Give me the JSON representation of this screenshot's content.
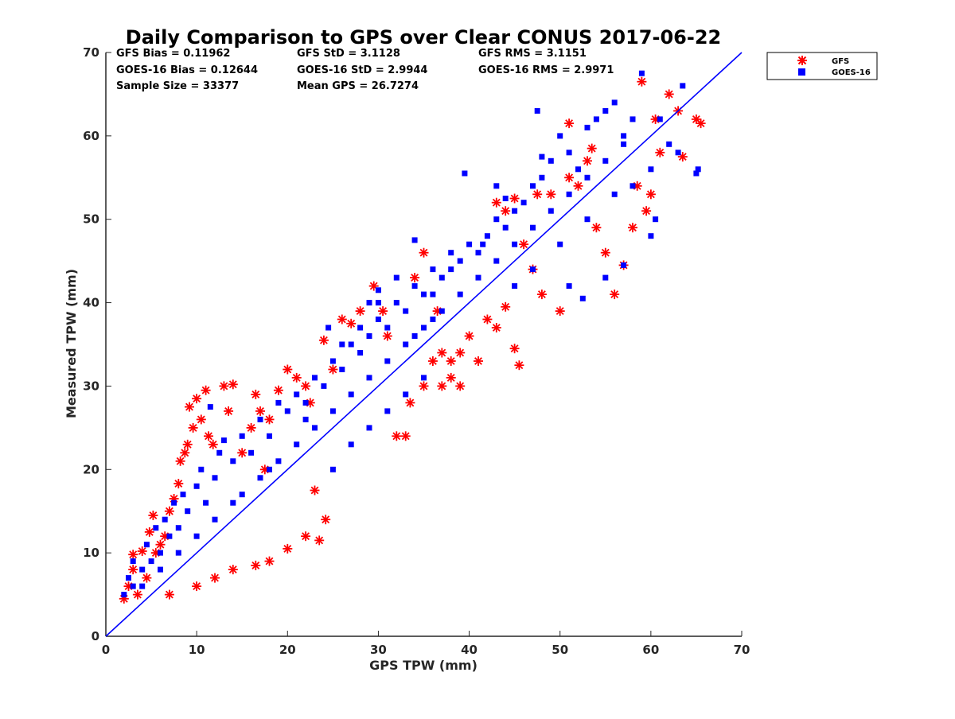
{
  "chart_data": {
    "type": "scatter",
    "title": "Daily Comparison to GPS over Clear CONUS 2017-06-22",
    "xlabel": "GPS TPW (mm)",
    "ylabel": "Measured TPW (mm)",
    "xlim": [
      0,
      70
    ],
    "ylim": [
      0,
      70
    ],
    "xticks": [
      "0",
      "10",
      "20",
      "30",
      "40",
      "50",
      "60",
      "70"
    ],
    "yticks": [
      "0",
      "10",
      "20",
      "30",
      "40",
      "50",
      "60",
      "70"
    ],
    "stats": [
      [
        "GFS Bias = 0.11962",
        "GFS StD = 3.1128",
        "GFS RMS = 3.1151"
      ],
      [
        "GOES-16 Bias = 0.12644",
        "GOES-16 StD = 2.9944",
        "GOES-16 RMS = 2.9971"
      ],
      [
        "Sample Size = 33377",
        "Mean GPS = 26.7274"
      ]
    ],
    "legend": [
      {
        "name": "GFS",
        "marker": "asterisk",
        "color": "#ff0000"
      },
      {
        "name": "GOES-16",
        "marker": "square",
        "color": "#0000ff"
      }
    ],
    "legend_position": "outside-top-right",
    "reference_line": {
      "from": [
        0,
        0
      ],
      "to": [
        70,
        70
      ],
      "color": "#0000ff"
    },
    "series": [
      {
        "name": "GFS",
        "color": "#ff0000",
        "points": [
          [
            2,
            4.5
          ],
          [
            2.5,
            6
          ],
          [
            3,
            8
          ],
          [
            3,
            9.8
          ],
          [
            3.5,
            5
          ],
          [
            4,
            10.2
          ],
          [
            4.5,
            7
          ],
          [
            4.8,
            12.5
          ],
          [
            5.2,
            14.5
          ],
          [
            5.5,
            10
          ],
          [
            6,
            11
          ],
          [
            6.5,
            12
          ],
          [
            7,
            15
          ],
          [
            7.5,
            16.5
          ],
          [
            8,
            18.3
          ],
          [
            8.2,
            21
          ],
          [
            8.7,
            22
          ],
          [
            9,
            23
          ],
          [
            9.2,
            27.5
          ],
          [
            9.6,
            25
          ],
          [
            10,
            28.5
          ],
          [
            10.5,
            26
          ],
          [
            11,
            29.5
          ],
          [
            11.3,
            24
          ],
          [
            11.8,
            23
          ],
          [
            13,
            30
          ],
          [
            14,
            30.2
          ],
          [
            13.5,
            27
          ],
          [
            15,
            22
          ],
          [
            16,
            25
          ],
          [
            16.5,
            29
          ],
          [
            17,
            27
          ],
          [
            17.5,
            20
          ],
          [
            18,
            26
          ],
          [
            19,
            29.5
          ],
          [
            20,
            32
          ],
          [
            21,
            31
          ],
          [
            22,
            30
          ],
          [
            22.5,
            28
          ],
          [
            23,
            17.5
          ],
          [
            24,
            35.5
          ],
          [
            25,
            32
          ],
          [
            26,
            38
          ],
          [
            27,
            37.5
          ],
          [
            28,
            39
          ],
          [
            29.5,
            42
          ],
          [
            30.5,
            39
          ],
          [
            31,
            36
          ],
          [
            23.5,
            11.5
          ],
          [
            24.2,
            14
          ],
          [
            22,
            12
          ],
          [
            20,
            10.5
          ],
          [
            18,
            9
          ],
          [
            16.5,
            8.5
          ],
          [
            14,
            8
          ],
          [
            12,
            7
          ],
          [
            10,
            6
          ],
          [
            7,
            5
          ],
          [
            32,
            24
          ],
          [
            33,
            24
          ],
          [
            33.5,
            28
          ],
          [
            34,
            43
          ],
          [
            35,
            46
          ],
          [
            36,
            33
          ],
          [
            37,
            30
          ],
          [
            38,
            31
          ],
          [
            39,
            34
          ],
          [
            40,
            36
          ],
          [
            41,
            33
          ],
          [
            42,
            38
          ],
          [
            43,
            52
          ],
          [
            44,
            51
          ],
          [
            45,
            34.5
          ],
          [
            45.5,
            32.5
          ],
          [
            46,
            47
          ],
          [
            47,
            44
          ],
          [
            48,
            41
          ],
          [
            49,
            53
          ],
          [
            50,
            39
          ],
          [
            51,
            55
          ],
          [
            52,
            54
          ],
          [
            53,
            57
          ],
          [
            54,
            49
          ],
          [
            55,
            46
          ],
          [
            56,
            41
          ],
          [
            57,
            44.5
          ],
          [
            58,
            49
          ],
          [
            58.5,
            54
          ],
          [
            59,
            66.5
          ],
          [
            59.5,
            51
          ],
          [
            60,
            53
          ],
          [
            60.5,
            62
          ],
          [
            61,
            58
          ],
          [
            62,
            65
          ],
          [
            63,
            63
          ],
          [
            63.5,
            57.5
          ],
          [
            65,
            62
          ],
          [
            65.5,
            61.5
          ],
          [
            51,
            61.5
          ],
          [
            53.5,
            58.5
          ],
          [
            45,
            52.5
          ],
          [
            47.5,
            53
          ],
          [
            44,
            39.5
          ],
          [
            43,
            37
          ],
          [
            39,
            30
          ],
          [
            37,
            34
          ],
          [
            36.5,
            39
          ],
          [
            38,
            33
          ],
          [
            35,
            30
          ]
        ]
      },
      {
        "name": "GOES-16",
        "color": "#0000ff",
        "points": [
          [
            2,
            5
          ],
          [
            2.5,
            7
          ],
          [
            3,
            6
          ],
          [
            3,
            9
          ],
          [
            4,
            8
          ],
          [
            4.5,
            11
          ],
          [
            5,
            9
          ],
          [
            5.5,
            13
          ],
          [
            6,
            10
          ],
          [
            6.5,
            14
          ],
          [
            7,
            12
          ],
          [
            7.5,
            16
          ],
          [
            8,
            13
          ],
          [
            8.5,
            17
          ],
          [
            9,
            15
          ],
          [
            10,
            18
          ],
          [
            10.5,
            20
          ],
          [
            11,
            16
          ],
          [
            11.5,
            27.5
          ],
          [
            12,
            19
          ],
          [
            12.5,
            22
          ],
          [
            13,
            23.5
          ],
          [
            14,
            21
          ],
          [
            15,
            24
          ],
          [
            16,
            22
          ],
          [
            17,
            26
          ],
          [
            18,
            24
          ],
          [
            19,
            28
          ],
          [
            20,
            27
          ],
          [
            21,
            29
          ],
          [
            22,
            28
          ],
          [
            23,
            31
          ],
          [
            24,
            30
          ],
          [
            24.5,
            37
          ],
          [
            25,
            33
          ],
          [
            26,
            32
          ],
          [
            27,
            35
          ],
          [
            28,
            34
          ],
          [
            29,
            36
          ],
          [
            30,
            38
          ],
          [
            31,
            37
          ],
          [
            32,
            40
          ],
          [
            33,
            39
          ],
          [
            34,
            42
          ],
          [
            35,
            41
          ],
          [
            36,
            44
          ],
          [
            37,
            43
          ],
          [
            38,
            46
          ],
          [
            39,
            45
          ],
          [
            40,
            47
          ],
          [
            41,
            46
          ],
          [
            42,
            48
          ],
          [
            43,
            50
          ],
          [
            44,
            49
          ],
          [
            45,
            51
          ],
          [
            46,
            52
          ],
          [
            47,
            54
          ],
          [
            48,
            55
          ],
          [
            49,
            57
          ],
          [
            50,
            60
          ],
          [
            51,
            58
          ],
          [
            52,
            56
          ],
          [
            53,
            61
          ],
          [
            54,
            62
          ],
          [
            55,
            63
          ],
          [
            56,
            64
          ],
          [
            57,
            60
          ],
          [
            58,
            62
          ],
          [
            59,
            67.5
          ],
          [
            60,
            56
          ],
          [
            61,
            62
          ],
          [
            62,
            59
          ],
          [
            63,
            58
          ],
          [
            63.5,
            66
          ],
          [
            65,
            55.5
          ],
          [
            65.2,
            56
          ],
          [
            25,
            20
          ],
          [
            27,
            23
          ],
          [
            29,
            25
          ],
          [
            31,
            27
          ],
          [
            33,
            29
          ],
          [
            35,
            31
          ],
          [
            30,
            40
          ],
          [
            28,
            37
          ],
          [
            26,
            35
          ],
          [
            22,
            26
          ],
          [
            18,
            20
          ],
          [
            14,
            16
          ],
          [
            10,
            12
          ],
          [
            8,
            10
          ],
          [
            6,
            8
          ],
          [
            4,
            6
          ],
          [
            39.5,
            55.5
          ],
          [
            43,
            54
          ],
          [
            44,
            52.5
          ],
          [
            47.5,
            63
          ],
          [
            48,
            57.5
          ],
          [
            41.5,
            47
          ],
          [
            38,
            44
          ],
          [
            36,
            41
          ],
          [
            34,
            47.5
          ],
          [
            32,
            43
          ],
          [
            30,
            41.5
          ],
          [
            51,
            42
          ],
          [
            52.5,
            40.5
          ],
          [
            55,
            43
          ],
          [
            57,
            44.5
          ],
          [
            60,
            48
          ],
          [
            60.5,
            50
          ],
          [
            29,
            40
          ],
          [
            34,
            36
          ],
          [
            36,
            38
          ],
          [
            45,
            42
          ],
          [
            47,
            44
          ],
          [
            50,
            47
          ],
          [
            53,
            50
          ],
          [
            56,
            53
          ],
          [
            58,
            54
          ],
          [
            12,
            14
          ],
          [
            15,
            17
          ],
          [
            17,
            19
          ],
          [
            19,
            21
          ],
          [
            21,
            23
          ],
          [
            23,
            25
          ],
          [
            25,
            27
          ],
          [
            27,
            29
          ],
          [
            29,
            31
          ],
          [
            31,
            33
          ],
          [
            33,
            35
          ],
          [
            35,
            37
          ],
          [
            37,
            39
          ],
          [
            39,
            41
          ],
          [
            41,
            43
          ],
          [
            43,
            45
          ],
          [
            45,
            47
          ],
          [
            47,
            49
          ],
          [
            49,
            51
          ],
          [
            51,
            53
          ],
          [
            53,
            55
          ],
          [
            55,
            57
          ],
          [
            57,
            59
          ]
        ]
      }
    ]
  }
}
